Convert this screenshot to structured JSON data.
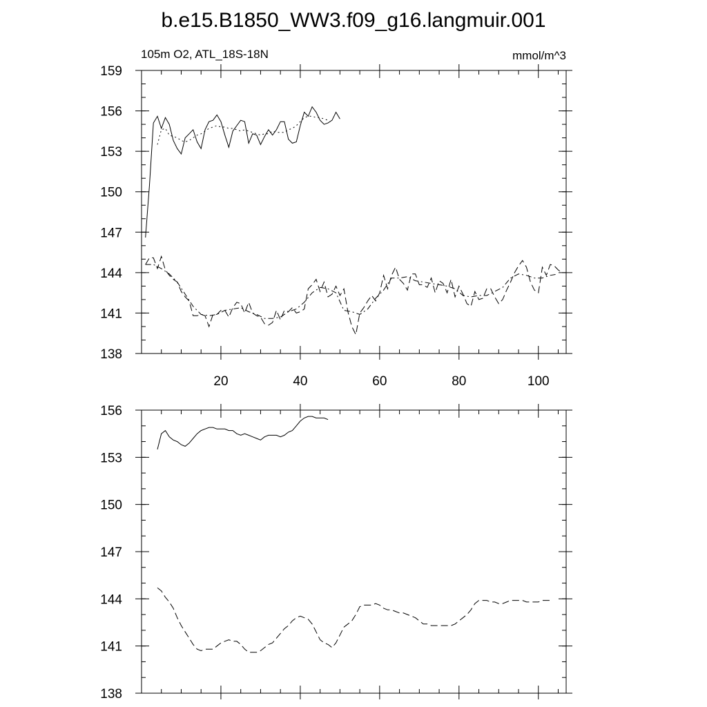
{
  "title": "b.e15.B1850_WW3.f09_g16.langmuir.001",
  "chart_data": [
    {
      "type": "line",
      "subtitle_left": "105m O2, ATL_18S-18N",
      "subtitle_right": "mmol/m^3",
      "xlim": [
        0,
        107
      ],
      "ylim": [
        138,
        159
      ],
      "x_ticks": [
        20,
        40,
        60,
        80,
        100
      ],
      "x_tick_labels": [
        "20",
        "40",
        "60",
        "80",
        "100"
      ],
      "y_ticks": [
        138,
        141,
        144,
        147,
        150,
        153,
        156,
        159
      ],
      "y_tick_labels": [
        "138",
        "141",
        "144",
        "147",
        "150",
        "153",
        "156",
        "159"
      ],
      "series": [
        {
          "style": "solid",
          "x": [
            1,
            2,
            3,
            4,
            5,
            6,
            7,
            8,
            9,
            10,
            11,
            12,
            13,
            14,
            15,
            16,
            17,
            18,
            19,
            20,
            21,
            22,
            23,
            24,
            25,
            26,
            27,
            28,
            29,
            30,
            31,
            32,
            33,
            34,
            35,
            36,
            37,
            38,
            39,
            40,
            41,
            42,
            43,
            44,
            45,
            46,
            47,
            48,
            49,
            50
          ],
          "values": [
            146.6,
            150.5,
            155.1,
            155.6,
            154.7,
            155.5,
            155.0,
            153.8,
            153.2,
            152.8,
            154.0,
            154.3,
            154.6,
            153.7,
            153.2,
            154.6,
            155.2,
            155.3,
            155.7,
            155.2,
            154.2,
            153.3,
            154.5,
            154.9,
            155.3,
            155.2,
            153.6,
            154.3,
            154.2,
            153.5,
            154.1,
            154.6,
            154.2,
            154.6,
            155.2,
            155.2,
            153.9,
            153.6,
            153.7,
            154.9,
            155.9,
            155.6,
            156.3,
            155.9,
            155.3,
            155.0,
            155.1,
            155.3,
            155.9,
            155.4
          ]
        },
        {
          "style": "dotted",
          "x": [
            4,
            5,
            6,
            7,
            8,
            9,
            10,
            11,
            12,
            13,
            14,
            15,
            16,
            17,
            18,
            19,
            20,
            21,
            22,
            23,
            24,
            25,
            26,
            27,
            28,
            29,
            30,
            31,
            32,
            33,
            34,
            35,
            36,
            37,
            38,
            39,
            40,
            41,
            42,
            43,
            44,
            45,
            46,
            47
          ],
          "values": [
            153.5,
            154.6,
            154.7,
            154.2,
            154.1,
            154.0,
            153.8,
            153.7,
            153.8,
            154.0,
            154.2,
            154.3,
            154.5,
            154.7,
            154.8,
            154.9,
            154.8,
            154.8,
            154.7,
            154.7,
            154.6,
            154.5,
            154.6,
            154.5,
            154.4,
            154.3,
            154.2,
            154.3,
            154.3,
            154.5,
            154.4,
            154.4,
            154.4,
            154.6,
            154.7,
            154.9,
            155.2,
            155.5,
            155.6,
            155.6,
            155.5,
            155.5,
            155.4,
            155.3
          ]
        },
        {
          "style": "dashed",
          "x": [
            1,
            2,
            3,
            4,
            5,
            6,
            7,
            8,
            9,
            10,
            11,
            12,
            13,
            14,
            15,
            16,
            17,
            18,
            19,
            20,
            21,
            22,
            23,
            24,
            25,
            26,
            27,
            28,
            29,
            30,
            31,
            32,
            33,
            34,
            35,
            36,
            37,
            38,
            39,
            40,
            41,
            42,
            43,
            44,
            45,
            46,
            47,
            48,
            49,
            50,
            51,
            52,
            53,
            54,
            55,
            56,
            57,
            58,
            59,
            60,
            61,
            62,
            63,
            64,
            65,
            66,
            67,
            68,
            69,
            70,
            71,
            72,
            73,
            74,
            75,
            76,
            77,
            78,
            79,
            80,
            81,
            82,
            83,
            84,
            85,
            86,
            87,
            88,
            89,
            90,
            91,
            92,
            93,
            94,
            95,
            96,
            97,
            98,
            99,
            100,
            101,
            102,
            103,
            104,
            105,
            106
          ],
          "values": [
            144.6,
            145.1,
            145.1,
            144.3,
            145.2,
            144.2,
            143.8,
            143.5,
            143.3,
            142.6,
            142.2,
            141.9,
            140.8,
            140.8,
            140.9,
            140.8,
            140.0,
            140.9,
            140.9,
            141.2,
            141.2,
            140.7,
            141.4,
            141.8,
            141.7,
            141.0,
            141.8,
            141.0,
            140.8,
            140.7,
            140.2,
            140.1,
            140.3,
            141.2,
            140.5,
            141.2,
            141.1,
            141.4,
            141.0,
            141.1,
            141.3,
            142.8,
            143.1,
            143.5,
            142.6,
            143.3,
            142.2,
            142.4,
            143.0,
            142.3,
            142.8,
            141.1,
            140.0,
            139.4,
            141.0,
            141.4,
            141.9,
            142.3,
            141.9,
            142.5,
            143.8,
            142.8,
            143.8,
            144.4,
            143.5,
            143.2,
            142.7,
            143.9,
            143.9,
            143.1,
            143.1,
            142.9,
            143.6,
            142.5,
            143.4,
            143.2,
            142.5,
            143.5,
            142.2,
            143.0,
            142.4,
            141.7,
            141.5,
            142.6,
            142.0,
            142.1,
            142.8,
            142.8,
            142.2,
            141.7,
            142.0,
            142.7,
            143.3,
            144.0,
            144.5,
            144.9,
            144.4,
            143.3,
            142.7,
            142.5,
            144.4,
            143.8,
            144.6,
            144.5,
            144.2,
            144.0
          ]
        },
        {
          "style": "dash-dot",
          "x": [
            1,
            3,
            5,
            7,
            9,
            11,
            13,
            15,
            17,
            19,
            21,
            23,
            25,
            27,
            29,
            31,
            33,
            35,
            37,
            39,
            41,
            43,
            45,
            47,
            49,
            51,
            53,
            55,
            57,
            59,
            61,
            63,
            65,
            67,
            69,
            71,
            73,
            75,
            77,
            79,
            81,
            83,
            85,
            87,
            89,
            91,
            93,
            95,
            97,
            99,
            101,
            103,
            105
          ],
          "values": [
            144.6,
            144.6,
            144.3,
            143.9,
            143.3,
            142.4,
            141.5,
            140.9,
            140.8,
            140.9,
            141.2,
            141.3,
            141.4,
            141.1,
            140.9,
            140.6,
            140.6,
            140.7,
            141.1,
            141.3,
            141.8,
            142.5,
            142.9,
            142.8,
            142.5,
            141.2,
            141.1,
            140.9,
            141.3,
            142.1,
            142.7,
            143.6,
            143.6,
            143.7,
            143.4,
            143.3,
            143.2,
            143.1,
            143.0,
            142.8,
            142.3,
            142.2,
            142.3,
            142.3,
            142.6,
            142.9,
            143.6,
            143.9,
            143.8,
            143.6,
            143.6,
            143.8,
            143.9
          ]
        }
      ]
    },
    {
      "type": "line",
      "xlim": [
        0,
        107
      ],
      "ylim": [
        138,
        156
      ],
      "x_ticks": [
        20,
        40,
        60,
        80,
        100
      ],
      "y_ticks": [
        138,
        141,
        144,
        147,
        150,
        153,
        156
      ],
      "y_tick_labels": [
        "138",
        "141",
        "144",
        "147",
        "150",
        "153",
        "156"
      ],
      "series": [
        {
          "style": "solid",
          "x": [
            4,
            5,
            6,
            7,
            8,
            9,
            10,
            11,
            12,
            13,
            14,
            15,
            16,
            17,
            18,
            19,
            20,
            21,
            22,
            23,
            24,
            25,
            26,
            27,
            28,
            29,
            30,
            31,
            32,
            33,
            34,
            35,
            36,
            37,
            38,
            39,
            40,
            41,
            42,
            43,
            44,
            45,
            46,
            47
          ],
          "values": [
            153.5,
            154.5,
            154.7,
            154.3,
            154.1,
            154.0,
            153.8,
            153.7,
            153.9,
            154.2,
            154.5,
            154.7,
            154.8,
            154.9,
            154.9,
            154.8,
            154.8,
            154.8,
            154.7,
            154.7,
            154.5,
            154.4,
            154.5,
            154.4,
            154.3,
            154.2,
            154.1,
            154.3,
            154.4,
            154.4,
            154.4,
            154.3,
            154.4,
            154.6,
            154.7,
            155.0,
            155.3,
            155.5,
            155.6,
            155.6,
            155.5,
            155.5,
            155.5,
            155.4
          ]
        },
        {
          "style": "dashed",
          "x": [
            4,
            5,
            6,
            7,
            8,
            9,
            10,
            11,
            12,
            13,
            14,
            15,
            16,
            17,
            18,
            19,
            20,
            21,
            22,
            23,
            24,
            25,
            26,
            27,
            28,
            29,
            30,
            31,
            32,
            33,
            34,
            35,
            36,
            37,
            38,
            39,
            40,
            41,
            42,
            43,
            44,
            45,
            46,
            47,
            48,
            49,
            50,
            51,
            52,
            53,
            54,
            55,
            56,
            57,
            58,
            59,
            60,
            61,
            62,
            63,
            64,
            65,
            66,
            67,
            68,
            69,
            70,
            71,
            72,
            73,
            74,
            75,
            76,
            77,
            78,
            79,
            80,
            81,
            82,
            83,
            84,
            85,
            86,
            87,
            88,
            89,
            90,
            91,
            92,
            93,
            94,
            95,
            96,
            97,
            98,
            99,
            100,
            101,
            102,
            103
          ],
          "values": [
            144.7,
            144.5,
            144.1,
            143.8,
            143.4,
            142.8,
            142.3,
            141.9,
            141.5,
            141.1,
            140.8,
            140.7,
            140.8,
            140.8,
            140.8,
            141.0,
            141.2,
            141.3,
            141.4,
            141.3,
            141.3,
            141.1,
            140.8,
            140.6,
            140.6,
            140.6,
            140.7,
            140.9,
            141.1,
            141.2,
            141.5,
            141.8,
            142.1,
            142.3,
            142.6,
            142.8,
            142.9,
            142.8,
            142.7,
            142.4,
            141.9,
            141.4,
            141.2,
            141.1,
            140.9,
            141.2,
            141.7,
            142.2,
            142.4,
            142.6,
            143.0,
            143.5,
            143.6,
            143.6,
            143.6,
            143.7,
            143.6,
            143.4,
            143.3,
            143.3,
            143.2,
            143.1,
            143.1,
            143.0,
            142.9,
            142.8,
            142.6,
            142.4,
            142.4,
            142.3,
            142.3,
            142.3,
            142.3,
            142.3,
            142.3,
            142.4,
            142.6,
            142.8,
            143.0,
            143.3,
            143.7,
            143.9,
            143.9,
            143.9,
            143.8,
            143.8,
            143.7,
            143.7,
            143.8,
            143.9,
            143.9,
            143.9,
            143.9,
            143.8,
            143.8,
            143.8,
            143.8,
            143.9,
            143.9,
            143.9
          ]
        }
      ]
    }
  ]
}
